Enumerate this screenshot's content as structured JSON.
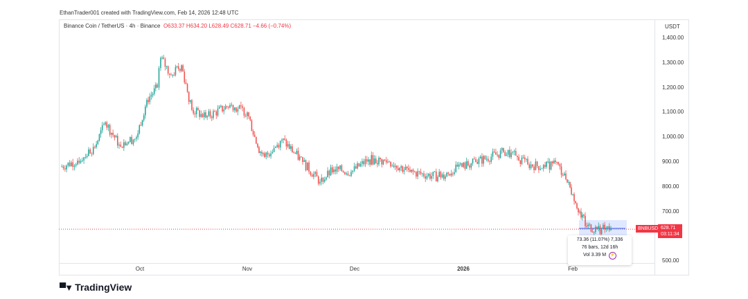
{
  "header": {
    "credit": "EthanTrader001 created with TradingView.com, Feb 14, 2026 12:48 UTC"
  },
  "legend": {
    "symbol": "Binance Coin / TetherUS · 4h · Binance",
    "open": "O633.37",
    "high": "H634.20",
    "low": "L628.49",
    "close": "C628.71",
    "change": "−4.66 (−0.74%)"
  },
  "price_axis": {
    "unit": "USDT",
    "ticks": [
      "1,400.00",
      "1,300.00",
      "1,200.00",
      "1,100.00",
      "1,000.00",
      "900.00",
      "800.00",
      "700.00",
      "500.00"
    ]
  },
  "time_axis": {
    "ticks": [
      "Oct",
      "Nov",
      "Dec",
      "2026",
      "Feb"
    ]
  },
  "last_price": {
    "symbol": "BNBUSDT",
    "price": "628.71",
    "countdown": "03:11:34",
    "color": "#f23645"
  },
  "measure": {
    "line1": "73.36 (11.07%) 7,336",
    "line2": "76 bars, 12d 16h",
    "line3": "Vol 3.39 M"
  },
  "brand": "TradingView",
  "colors": {
    "up": "#26a69a",
    "down": "#ef5350"
  },
  "chart_data": {
    "type": "candlestick",
    "title": "Binance Coin / TetherUS · 4h · Binance",
    "ylabel": "USDT",
    "ylim": [
      500,
      1400
    ],
    "grid": false,
    "series": [
      {
        "values": [
          [
            "2025-09-08",
            880
          ],
          [
            "2025-09-13",
            905
          ],
          [
            "2025-09-18",
            960
          ],
          [
            "2025-09-21",
            1060
          ],
          [
            "2025-09-25",
            970
          ],
          [
            "2025-09-30",
            1000
          ],
          [
            "2025-10-03",
            1150
          ],
          [
            "2025-10-06",
            1200
          ],
          [
            "2025-10-07",
            1320
          ],
          [
            "2025-10-10",
            1250
          ],
          [
            "2025-10-13",
            1290
          ],
          [
            "2025-10-16",
            1110
          ],
          [
            "2025-10-20",
            1080
          ],
          [
            "2025-10-27",
            1130
          ],
          [
            "2025-11-01",
            1100
          ],
          [
            "2025-11-04",
            960
          ],
          [
            "2025-11-06",
            920
          ],
          [
            "2025-11-11",
            990
          ],
          [
            "2025-11-17",
            900
          ],
          [
            "2025-11-22",
            820
          ],
          [
            "2025-11-26",
            870
          ],
          [
            "2025-12-01",
            860
          ],
          [
            "2025-12-06",
            910
          ],
          [
            "2025-12-12",
            900
          ],
          [
            "2025-12-18",
            860
          ],
          [
            "2025-12-26",
            840
          ],
          [
            "2026-01-02",
            880
          ],
          [
            "2026-01-06",
            900
          ],
          [
            "2026-01-14",
            940
          ],
          [
            "2026-01-18",
            920
          ],
          [
            "2026-01-21",
            890
          ],
          [
            "2026-01-26",
            880
          ],
          [
            "2026-01-29",
            900
          ],
          [
            "2026-02-01",
            830
          ],
          [
            "2026-02-03",
            770
          ],
          [
            "2026-02-05",
            700
          ],
          [
            "2026-02-07",
            640
          ],
          [
            "2026-02-10",
            630
          ],
          [
            "2026-02-14",
            628.71
          ]
        ]
      }
    ]
  }
}
